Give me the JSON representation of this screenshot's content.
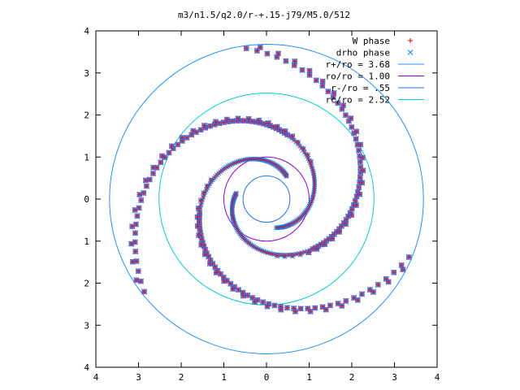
{
  "chart_data": {
    "type": "scatter",
    "title": "m3/n1.5/q2.0/r-+.15-j79/M5.0/512",
    "xlim": [
      -4,
      4
    ],
    "ylim": [
      -4,
      4
    ],
    "xticks": [
      -4,
      -3,
      -2,
      -1,
      0,
      1,
      2,
      3,
      4
    ],
    "yticks": [
      -4,
      -3,
      -2,
      -1,
      0,
      1,
      2,
      3,
      4
    ],
    "xtick_labels": [
      "4",
      "3",
      "2",
      "1",
      "0",
      "1",
      "2",
      "3",
      "4"
    ],
    "ytick_labels": [
      "4",
      "3",
      "2",
      "1",
      "0",
      "1",
      "2",
      "3",
      "4"
    ],
    "grid": false,
    "legend_position": "top-right",
    "series": [
      {
        "name": "W phase",
        "marker": "+",
        "color": "#ff0000",
        "spiral": {
          "arms": 3,
          "r_min": 0.72,
          "r_max": 3.62,
          "b": 0.32,
          "theta0": 0.85,
          "trail_phase": 0.35
        }
      },
      {
        "name": "drho phase",
        "marker": "x",
        "color": "#0080ff",
        "spiral": {
          "arms": 3,
          "r_min": 0.72,
          "r_max": 3.62,
          "b": 0.32,
          "theta0": 0.85,
          "trail_phase": 0.35
        }
      }
    ],
    "circles": [
      {
        "name": "r+/ro = 3.68",
        "r": 3.68,
        "color": "#1e90ff"
      },
      {
        "name": "ro/ro = 1.00",
        "r": 1.0,
        "color": "#9400d3"
      },
      {
        "name": "r-/ro = .55",
        "r": 0.55,
        "color": "#1e6fff"
      },
      {
        "name": "rc/ro = 2.52",
        "r": 2.52,
        "color": "#00ced1"
      }
    ]
  }
}
